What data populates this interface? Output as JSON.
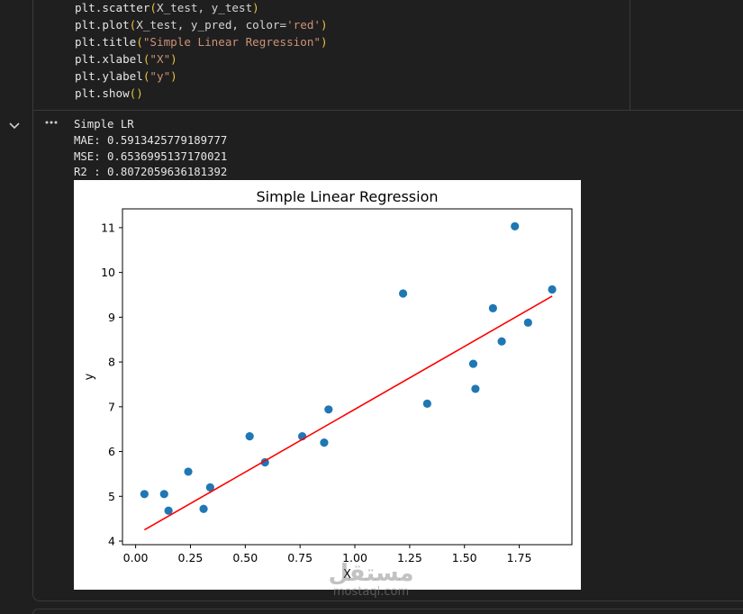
{
  "code": {
    "lines": [
      {
        "fn": "plt.scatter",
        "args": "X_test, y_test",
        "str": ""
      },
      {
        "fn": "plt.plot",
        "args": "X_test, y_pred, color=",
        "str": "'red'"
      },
      {
        "fn": "plt.title",
        "args": "",
        "str": "\"Simple Linear Regression\""
      },
      {
        "fn": "plt.xlabel",
        "args": "",
        "str": "\"X\""
      },
      {
        "fn": "plt.ylabel",
        "args": "",
        "str": "\"y\""
      },
      {
        "fn": "plt.show",
        "args": "",
        "str": ""
      }
    ]
  },
  "output": {
    "lines": [
      "Simple LR",
      "MAE: 0.5913425779189777",
      "MSE: 0.6536995137170021",
      "R2 : 0.8072059636181392"
    ],
    "collapse_icon": "chevron-down-icon",
    "menu_icon": "ellipsis-icon"
  },
  "chart_data": {
    "type": "scatter",
    "title": "Simple Linear Regression",
    "xlabel": "X",
    "ylabel": "y",
    "xlim": [
      -0.06,
      1.99
    ],
    "ylim": [
      3.92,
      11.42
    ],
    "xticks": [
      "0.00",
      "0.25",
      "0.50",
      "0.75",
      "1.00",
      "1.25",
      "1.50",
      "1.75"
    ],
    "xtick_values": [
      0.0,
      0.25,
      0.5,
      0.75,
      1.0,
      1.25,
      1.5,
      1.75
    ],
    "yticks": [
      "4",
      "5",
      "6",
      "7",
      "8",
      "9",
      "10",
      "11"
    ],
    "ytick_values": [
      4,
      5,
      6,
      7,
      8,
      9,
      10,
      11
    ],
    "scatter": {
      "x": [
        0.04,
        0.13,
        0.15,
        0.24,
        0.31,
        0.34,
        0.52,
        0.59,
        0.76,
        0.86,
        0.88,
        1.22,
        1.33,
        1.54,
        1.55,
        1.63,
        1.67,
        1.73,
        1.79,
        1.9
      ],
      "y": [
        5.05,
        5.05,
        4.68,
        5.55,
        4.72,
        5.2,
        6.34,
        5.76,
        6.34,
        6.2,
        6.94,
        9.53,
        7.07,
        7.96,
        7.4,
        9.2,
        8.46,
        11.03,
        8.88,
        9.62
      ],
      "color": "#1f77b4"
    },
    "line": {
      "x": [
        0.04,
        1.9
      ],
      "y": [
        4.25,
        9.47
      ],
      "color": "red"
    }
  },
  "watermark": {
    "logo": "مستقل",
    "url": "mostaql.com"
  }
}
